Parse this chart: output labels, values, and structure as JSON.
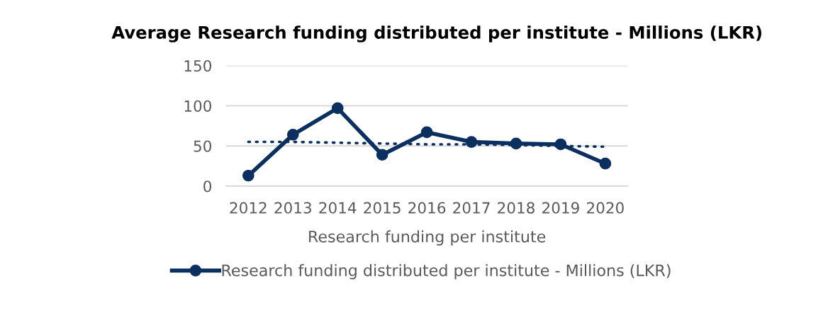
{
  "chart_data": {
    "type": "line",
    "title": "Average Research funding distributed per institute - Millions (LKR)",
    "xlabel": "Research funding per institute",
    "categories": [
      "2012",
      "2013",
      "2014",
      "2015",
      "2016",
      "2017",
      "2018",
      "2019",
      "2020"
    ],
    "series": [
      {
        "name": "Research funding distributed per institute - Millions (LKR)",
        "color": "#0b2f5e",
        "marker": "circle",
        "line_style": "solid",
        "values": [
          13,
          64,
          97,
          39,
          67,
          55,
          53,
          52,
          28
        ]
      },
      {
        "type": "line",
        "color": "#0b2f5e",
        "marker": "none",
        "line_style": "dotted",
        "values": [
          55,
          55,
          54,
          53,
          52,
          52,
          51,
          50,
          49
        ]
      }
    ],
    "ylim": [
      0,
      150
    ],
    "yticks": [
      0,
      50,
      100,
      150
    ],
    "grid": "y",
    "legend": "bottom"
  }
}
